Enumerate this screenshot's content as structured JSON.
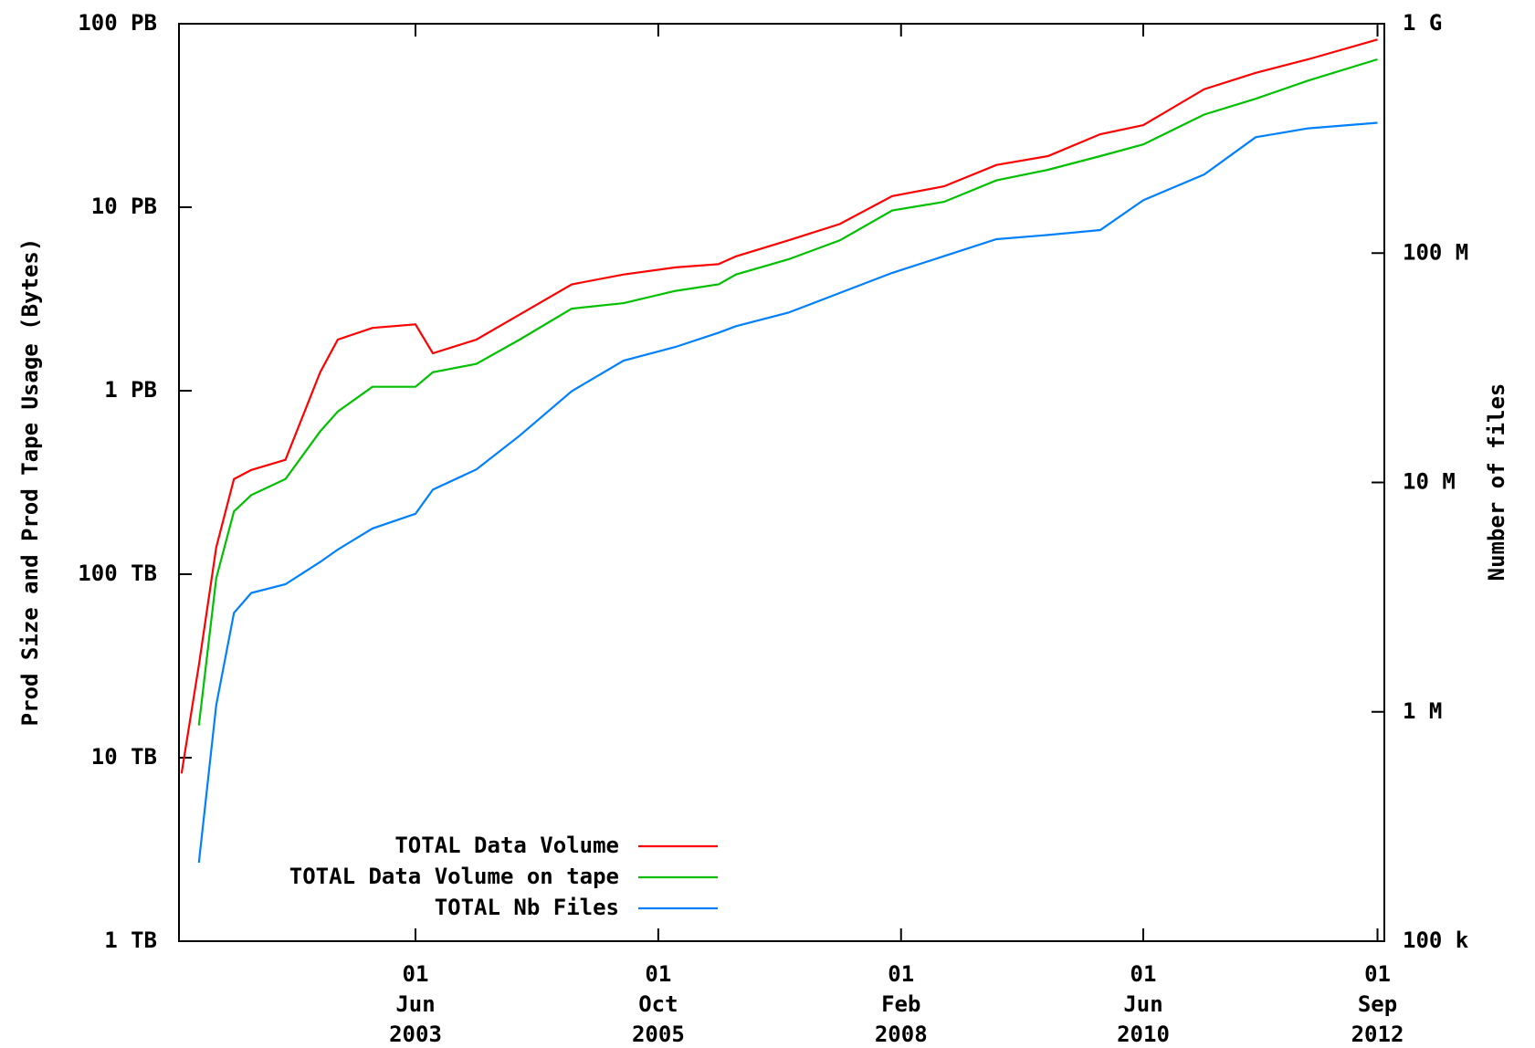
{
  "chart_data": {
    "type": "line",
    "ylabel": "Prod Size and Prod Tape Usage (Bytes)",
    "y2label": "Number of files",
    "x": [
      "2001-03-01",
      "2001-05-01",
      "2001-07-01",
      "2001-09-01",
      "2001-11-01",
      "2002-03-01",
      "2002-07-01",
      "2002-09-01",
      "2003-01-01",
      "2003-06-01",
      "2003-08-01",
      "2004-01-01",
      "2004-06-01",
      "2004-12-01",
      "2005-06-01",
      "2005-12-01",
      "2006-05-01",
      "2006-07-01",
      "2007-01-01",
      "2007-07-01",
      "2008-01-01",
      "2008-07-01",
      "2009-01-01",
      "2009-07-01",
      "2010-01-01",
      "2010-06-01",
      "2011-01-01",
      "2011-07-01",
      "2012-01-01",
      "2012-09-01"
    ],
    "series": [
      {
        "name": "TOTAL Data Volume",
        "color": "#ff0000",
        "axis": "y",
        "values": [
          8200000000000.0,
          32000000000000.0,
          140000000000000.0,
          330000000000000.0,
          370000000000000.0,
          420000000000000.0,
          1260000000000000.0,
          1900000000000000.0,
          2200000000000000.0,
          2300000000000000.0,
          1600000000000000.0,
          1900000000000000.0,
          2600000000000000.0,
          3800000000000000.0,
          4300000000000000.0,
          4700000000000000.0,
          4900000000000000.0,
          5400000000000000.0,
          6600000000000000.0,
          8100000000000000.0,
          1.15e+16,
          1.3e+16,
          1.7e+16,
          1.9e+16,
          2.5e+16,
          2.8e+16,
          4.4e+16,
          5.4e+16,
          6.4e+16,
          8.2e+16
        ]
      },
      {
        "name": "TOTAL Data Volume on tape",
        "color": "#00c000",
        "axis": "y",
        "values": [
          null,
          15000000000000.0,
          95000000000000.0,
          220000000000000.0,
          270000000000000.0,
          330000000000000.0,
          600000000000000.0,
          770000000000000.0,
          1050000000000000.0,
          1050000000000000.0,
          1260000000000000.0,
          1400000000000000.0,
          1900000000000000.0,
          2800000000000000.0,
          3000000000000000.0,
          3500000000000000.0,
          3800000000000000.0,
          4300000000000000.0,
          5200000000000000.0,
          6600000000000000.0,
          9600000000000000.0,
          1.07e+16,
          1.4e+16,
          1.6e+16,
          1.9e+16,
          2.2e+16,
          3.2e+16,
          3.9e+16,
          4.9e+16,
          6.4e+16
        ]
      },
      {
        "name": "TOTAL Nb Files",
        "color": "#0080ff",
        "axis": "y2",
        "values": [
          null,
          220000.0,
          1070000.0,
          2700000.0,
          3300000.0,
          3600000.0,
          4500000.0,
          5100000.0,
          6300000.0,
          7300000.0,
          9300000.0,
          11400000.0,
          16000000.0,
          25000000.0,
          34000000.0,
          39000000.0,
          45000000.0,
          48000000.0,
          55000000.0,
          67000000.0,
          82000000.0,
          97000000.0,
          115000000.0,
          120000000.0,
          126000000.0,
          170000000.0,
          220000000.0,
          320000000.0,
          350000000.0,
          370000000.0
        ]
      }
    ],
    "xlim": [
      "2001-02-20",
      "2012-09-25"
    ],
    "xticks": [
      {
        "value": "2003-06-01",
        "label": "01\nJun\n2003"
      },
      {
        "value": "2005-10-01",
        "label": "01\nOct\n2005"
      },
      {
        "value": "2008-02-01",
        "label": "01\nFeb\n2008"
      },
      {
        "value": "2010-06-01",
        "label": "01\nJun\n2010"
      },
      {
        "value": "2012-09-01",
        "label": "01\nSep\n2012"
      }
    ],
    "ylim": [
      1000000000000.0,
      1e+17
    ],
    "yticks": [
      {
        "value": 1000000000000.0,
        "label": "1 TB"
      },
      {
        "value": 10000000000000.0,
        "label": "10 TB"
      },
      {
        "value": 100000000000000.0,
        "label": "100 TB"
      },
      {
        "value": 1000000000000000.0,
        "label": "1 PB"
      },
      {
        "value": 1e+16,
        "label": "10 PB"
      },
      {
        "value": 1e+17,
        "label": "100 PB"
      }
    ],
    "y2lim": [
      100000.0,
      1000000000.0
    ],
    "y2ticks": [
      {
        "value": 100000.0,
        "label": "100 k"
      },
      {
        "value": 1000000.0,
        "label": "1 M"
      },
      {
        "value": 10000000.0,
        "label": "10 M"
      },
      {
        "value": 100000000.0,
        "label": "100 M"
      },
      {
        "value": 1000000000.0,
        "label": "1 G"
      }
    ],
    "log_scale": true,
    "grid": false,
    "legend": "lower left"
  }
}
